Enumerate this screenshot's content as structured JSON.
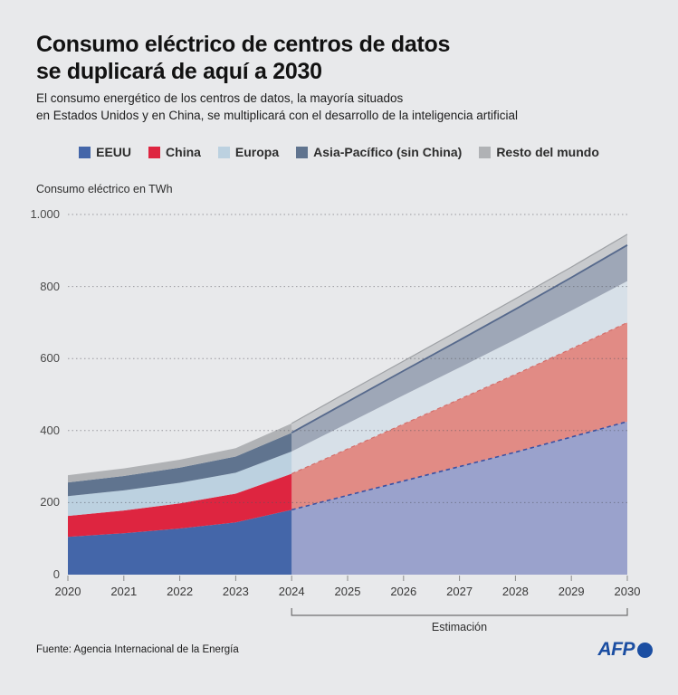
{
  "header": {
    "title_line1": "Consumo eléctrico de centros de datos",
    "title_line2": "se duplicará de aquí a 2030",
    "subtitle_line1": "El consumo energético de los centros de datos, la mayoría situados",
    "subtitle_line2": "en Estados Unidos y en China, se multiplicará con el desarrollo de la inteligencia artificial"
  },
  "annotation": {
    "estimation_label": "Estimación",
    "estimation_range": [
      2024,
      2030
    ]
  },
  "footer": {
    "source": "Fuente: Agencia Internacional de la Energía",
    "logo_text": "AFP",
    "logo_color": "#1B4EA2"
  },
  "chart_data": {
    "type": "area",
    "stacked": true,
    "title": "Consumo eléctrico de centros de datos se duplicará de aquí a 2030",
    "ylabel": "Consumo eléctrico en TWh",
    "unit": "TWh",
    "x": [
      2020,
      2021,
      2022,
      2023,
      2024,
      2025,
      2026,
      2027,
      2028,
      2029,
      2030
    ],
    "ylim": [
      0,
      1000
    ],
    "yticks": [
      0,
      200,
      400,
      600,
      800,
      1000
    ],
    "ytick_labels": [
      "0",
      "200",
      "400",
      "600",
      "800",
      "1.000"
    ],
    "grid": "dotted-horizontal",
    "legend_position": "top",
    "estimate_from_x": 2024,
    "series": [
      {
        "name": "EEUU",
        "color": "#4466A9",
        "faded_color": "#9AA2CC",
        "edge_color": "#3A51A3",
        "edge_dash": true,
        "edge_width": 1.6,
        "values": [
          105,
          115,
          128,
          145,
          180,
          220,
          260,
          300,
          340,
          382,
          425
        ]
      },
      {
        "name": "China",
        "color": "#DE2540",
        "faded_color": "#E18B85",
        "edge_color": "#D46E6B",
        "edge_dash": true,
        "edge_width": 1.2,
        "values": [
          58,
          63,
          70,
          80,
          100,
          129,
          158,
          187,
          216,
          245,
          275
        ]
      },
      {
        "name": "Europa",
        "color": "#BCD1E0",
        "faded_color": "#D7E0E8",
        "edge_color": "",
        "edge_dash": false,
        "edge_width": 0,
        "values": [
          55,
          56,
          57,
          58,
          62,
          71,
          80,
          88,
          97,
          106,
          115
        ]
      },
      {
        "name": "Asia-Pacífico (sin China)",
        "color": "#60748F",
        "faded_color": "#9EA7B7",
        "edge_color": "#56698C",
        "edge_dash": false,
        "edge_width": 1.8,
        "values": [
          38,
          40,
          42,
          45,
          52,
          60,
          68,
          76,
          84,
          92,
          100
        ]
      },
      {
        "name": "Resto del mundo",
        "color": "#B0B2B5",
        "faded_color": "#C8CACD",
        "edge_color": "#9EA1A5",
        "edge_dash": false,
        "edge_width": 1.2,
        "values": [
          20,
          21,
          22,
          23,
          26,
          27,
          27,
          28,
          29,
          29,
          30
        ]
      }
    ]
  }
}
